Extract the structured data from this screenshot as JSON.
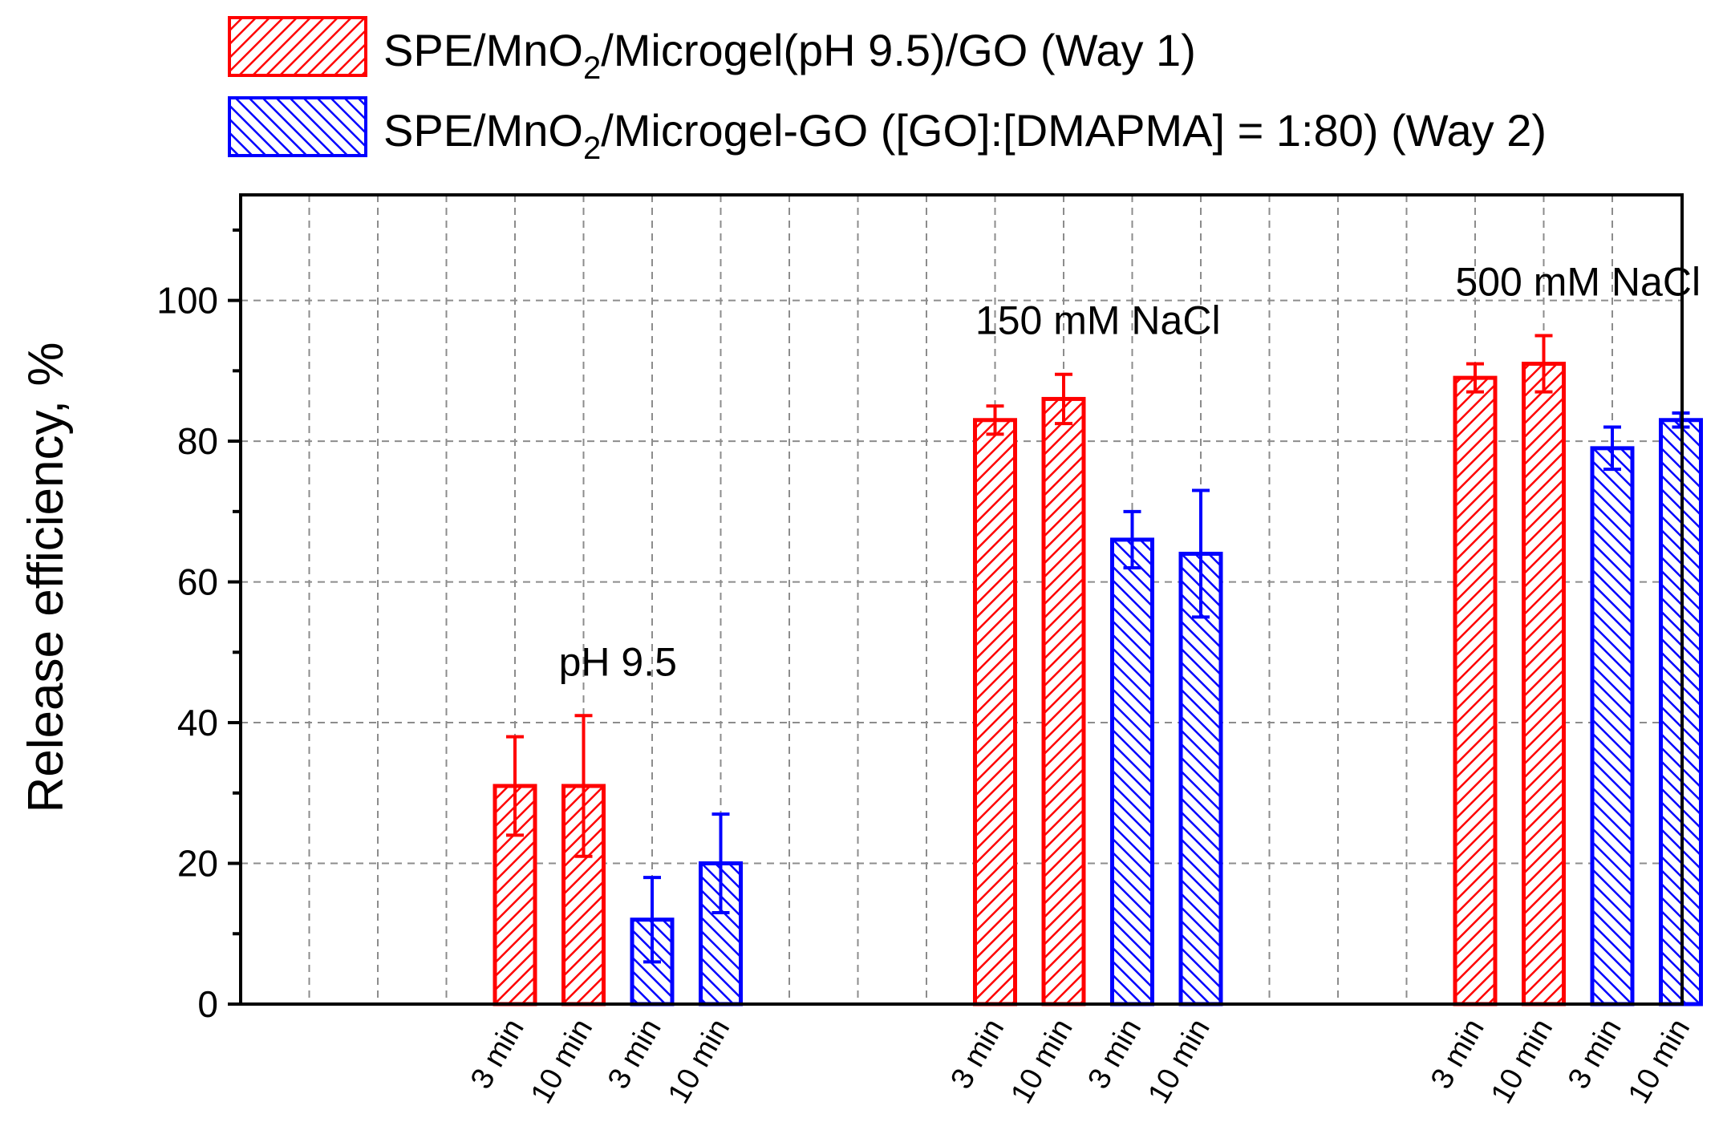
{
  "legend": {
    "way1_prefix": "SPE/MnO",
    "way1_sub": "2",
    "way1_suffix": "/Microgel(pH 9.5)/GO (Way 1)",
    "way2_prefix": "SPE/MnO",
    "way2_sub": "2",
    "way2_suffix": "/Microgel-GO ([GO]:[DMAPMA] = 1:80) (Way 2)"
  },
  "colors": {
    "way1": "#ff0000",
    "way2": "#0000ff",
    "axis": "#000000",
    "grid": "#8c8c8c"
  },
  "chart_data": {
    "type": "bar",
    "title": "",
    "xlabel": "",
    "ylabel": "Release efficiency, %",
    "ylim": [
      0,
      115
    ],
    "yticks": [
      0,
      20,
      40,
      60,
      80,
      100
    ],
    "grid": true,
    "legend_position": "top",
    "groups": [
      {
        "label": "pH 9.5",
        "bars": [
          {
            "category": "3 min",
            "series": "way1",
            "value": 31,
            "error": 7
          },
          {
            "category": "10 min",
            "series": "way1",
            "value": 31,
            "error": 10
          },
          {
            "category": "3 min",
            "series": "way2",
            "value": 12,
            "error": 6
          },
          {
            "category": "10 min",
            "series": "way2",
            "value": 20,
            "error": 7
          }
        ]
      },
      {
        "label": "150 mM NaCl",
        "bars": [
          {
            "category": "3 min",
            "series": "way1",
            "value": 83,
            "error": 2
          },
          {
            "category": "10 min",
            "series": "way1",
            "value": 86,
            "error": 3.5
          },
          {
            "category": "3 min",
            "series": "way2",
            "value": 66,
            "error": 4
          },
          {
            "category": "10 min",
            "series": "way2",
            "value": 64,
            "error": 9
          }
        ]
      },
      {
        "label": "500 mM NaCl",
        "bars": [
          {
            "category": "3 min",
            "series": "way1",
            "value": 89,
            "error": 2
          },
          {
            "category": "10 min",
            "series": "way1",
            "value": 91,
            "error": 4
          },
          {
            "category": "3 min",
            "series": "way2",
            "value": 79,
            "error": 3
          },
          {
            "category": "10 min",
            "series": "way2",
            "value": 83,
            "error": 1
          }
        ]
      }
    ],
    "series": [
      {
        "key": "way1",
        "name": "SPE/MnO2/Microgel(pH 9.5)/GO (Way 1)",
        "pattern": "hatch-right"
      },
      {
        "key": "way2",
        "name": "SPE/MnO2/Microgel-GO ([GO]:[DMAPMA] = 1:80) (Way 2)",
        "pattern": "hatch-left"
      }
    ]
  }
}
